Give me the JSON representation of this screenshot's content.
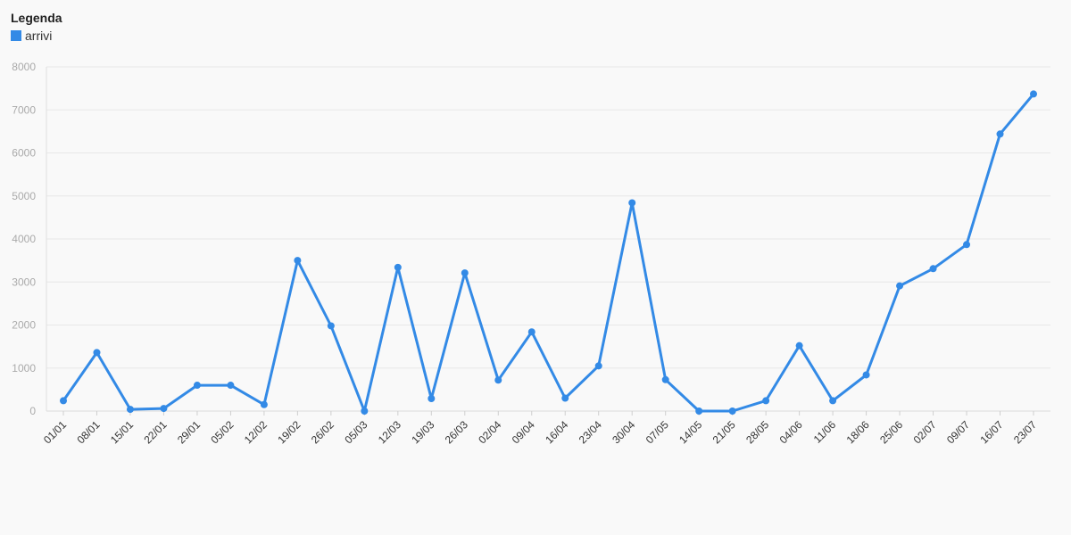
{
  "legend": {
    "title": "Legenda"
  },
  "chart_data": {
    "type": "line",
    "categories": [
      "01/01",
      "08/01",
      "15/01",
      "22/01",
      "29/01",
      "05/02",
      "12/02",
      "19/02",
      "26/02",
      "05/03",
      "12/03",
      "19/03",
      "26/03",
      "02/04",
      "09/04",
      "16/04",
      "23/04",
      "30/04",
      "07/05",
      "14/05",
      "21/05",
      "28/05",
      "04/06",
      "11/06",
      "18/06",
      "25/06",
      "02/07",
      "09/07",
      "16/07",
      "23/07"
    ],
    "series": [
      {
        "name": "arrivi",
        "color": "#338ae6",
        "values": [
          240,
          1360,
          40,
          60,
          600,
          600,
          150,
          3500,
          1980,
          0,
          3340,
          290,
          3210,
          720,
          1840,
          300,
          1050,
          4840,
          730,
          0,
          0,
          240,
          1520,
          240,
          840,
          2910,
          3310,
          3870,
          6440,
          7370
        ]
      }
    ],
    "ylim": [
      0,
      8000
    ],
    "yticks": [
      0,
      1000,
      2000,
      3000,
      4000,
      5000,
      6000,
      7000,
      8000
    ],
    "grid": true,
    "legend_position": "top-left",
    "xlabel": "",
    "ylabel": ""
  }
}
